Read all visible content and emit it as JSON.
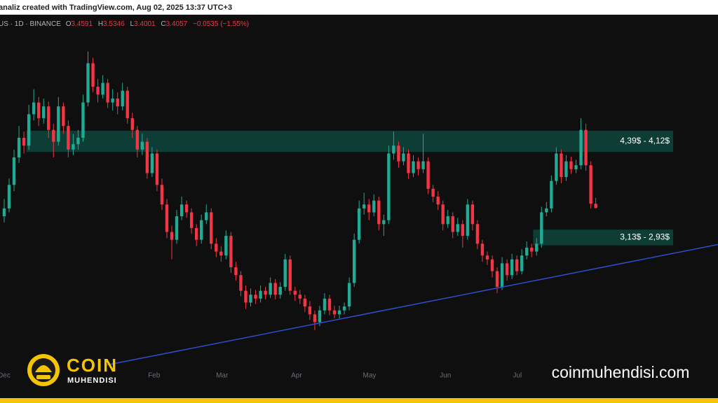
{
  "header": {
    "caption": "analiz created with TradingView.com, Aug 02, 2025 13:37 UTC+3",
    "symbol": "US · 1D · BINANCE",
    "ohlc_labels": [
      "O",
      "H",
      "L",
      "C"
    ],
    "change": "−0.0535 (−1.55%)"
  },
  "brand": {
    "name": "COIN",
    "sub": "MUHENDISI",
    "site": "coinmuhendisi.com"
  },
  "chart_data": {
    "type": "candlestick",
    "up_color": "#22ab94",
    "down_color": "#f23645",
    "ylim": [
      0.92,
      5.86
    ],
    "xlim": [
      -0.85,
      144.8
    ],
    "xticks": [
      {
        "value": 0,
        "label": "Dec"
      },
      {
        "value": 30.4,
        "label": "Feb"
      },
      {
        "value": 44.2,
        "label": "Mar"
      },
      {
        "value": 59.3,
        "label": "Apr"
      },
      {
        "value": 74.1,
        "label": "May"
      },
      {
        "value": 89.5,
        "label": "Jun"
      },
      {
        "value": 104.1,
        "label": "Jul"
      }
    ],
    "zones": [
      {
        "label": "4,39$ - 4,12$",
        "top": 4.39,
        "bottom": 4.12,
        "start": 4.5,
        "end": 135.7,
        "color": "#0e3d35"
      },
      {
        "label": "3,13$ - 2,93$",
        "top": 3.13,
        "bottom": 2.93,
        "start": 107.3,
        "end": 135.7,
        "color": "#0e3d35"
      }
    ],
    "trendline": {
      "x": [
        20.5,
        144.8
      ],
      "y": [
        1.4,
        2.94
      ],
      "color": "#2f4fd0"
    },
    "candles": [
      [
        3.3,
        3.52,
        3.22,
        3.4
      ],
      [
        3.4,
        3.78,
        3.35,
        3.7
      ],
      [
        3.7,
        4.15,
        3.62,
        4.05
      ],
      [
        4.05,
        4.45,
        3.98,
        4.3
      ],
      [
        4.3,
        4.38,
        4.1,
        4.2
      ],
      [
        4.2,
        4.72,
        4.15,
        4.6
      ],
      [
        4.6,
        4.92,
        4.52,
        4.75
      ],
      [
        4.75,
        4.82,
        4.45,
        4.55
      ],
      [
        4.55,
        4.8,
        4.48,
        4.7
      ],
      [
        4.7,
        4.76,
        4.3,
        4.4
      ],
      [
        4.4,
        4.48,
        4.05,
        4.25
      ],
      [
        4.25,
        4.82,
        4.2,
        4.7
      ],
      [
        4.7,
        4.75,
        4.35,
        4.45
      ],
      [
        4.45,
        4.52,
        4.05,
        4.15
      ],
      [
        4.15,
        4.35,
        4.08,
        4.22
      ],
      [
        4.22,
        4.4,
        4.15,
        4.3
      ],
      [
        4.3,
        4.85,
        4.25,
        4.75
      ],
      [
        4.75,
        5.4,
        4.7,
        5.25
      ],
      [
        5.25,
        5.32,
        4.88,
        4.95
      ],
      [
        4.95,
        5.05,
        4.75,
        4.85
      ],
      [
        4.85,
        5.1,
        4.8,
        5.0
      ],
      [
        5.0,
        5.05,
        4.68,
        4.75
      ],
      [
        4.75,
        4.92,
        4.65,
        4.8
      ],
      [
        4.8,
        4.88,
        4.6,
        4.7
      ],
      [
        4.7,
        5.0,
        4.65,
        4.9
      ],
      [
        4.9,
        4.95,
        4.48,
        4.55
      ],
      [
        4.55,
        4.62,
        4.3,
        4.4
      ],
      [
        4.4,
        4.45,
        4.05,
        4.15
      ],
      [
        4.15,
        4.35,
        4.08,
        4.25
      ],
      [
        4.25,
        4.3,
        3.78,
        3.85
      ],
      [
        3.85,
        4.18,
        3.8,
        4.1
      ],
      [
        4.1,
        4.15,
        3.62,
        3.7
      ],
      [
        3.7,
        3.78,
        3.38,
        3.45
      ],
      [
        3.45,
        3.52,
        3.02,
        3.1
      ],
      [
        3.1,
        3.18,
        2.75,
        3.0
      ],
      [
        3.0,
        3.38,
        2.95,
        3.3
      ],
      [
        3.3,
        3.55,
        3.25,
        3.45
      ],
      [
        3.45,
        3.5,
        3.28,
        3.35
      ],
      [
        3.35,
        3.4,
        3.08,
        3.15
      ],
      [
        3.15,
        3.2,
        2.92,
        3.0
      ],
      [
        3.0,
        3.32,
        2.95,
        3.25
      ],
      [
        3.25,
        3.45,
        3.2,
        3.35
      ],
      [
        3.35,
        3.4,
        2.88,
        2.95
      ],
      [
        2.95,
        3.02,
        2.78,
        2.85
      ],
      [
        2.85,
        2.92,
        2.72,
        2.8
      ],
      [
        2.8,
        3.12,
        2.75,
        3.05
      ],
      [
        3.05,
        3.1,
        2.58,
        2.65
      ],
      [
        2.65,
        2.72,
        2.48,
        2.55
      ],
      [
        2.55,
        2.6,
        2.28,
        2.35
      ],
      [
        2.35,
        2.42,
        2.12,
        2.2
      ],
      [
        2.2,
        2.38,
        2.15,
        2.3
      ],
      [
        2.3,
        2.36,
        2.18,
        2.25
      ],
      [
        2.25,
        2.42,
        2.2,
        2.35
      ],
      [
        2.35,
        2.4,
        2.24,
        2.3
      ],
      [
        2.3,
        2.52,
        2.26,
        2.45
      ],
      [
        2.45,
        2.5,
        2.24,
        2.3
      ],
      [
        2.3,
        2.46,
        2.25,
        2.4
      ],
      [
        2.4,
        2.82,
        2.35,
        2.75
      ],
      [
        2.75,
        2.8,
        2.3,
        2.35
      ],
      [
        2.35,
        2.4,
        2.22,
        2.3
      ],
      [
        2.3,
        2.36,
        2.18,
        2.25
      ],
      [
        2.25,
        2.3,
        2.08,
        2.15
      ],
      [
        2.15,
        2.22,
        1.98,
        2.05
      ],
      [
        2.05,
        2.1,
        1.85,
        1.95
      ],
      [
        1.95,
        2.16,
        1.9,
        2.1
      ],
      [
        2.1,
        2.32,
        2.05,
        2.25
      ],
      [
        2.25,
        2.3,
        2.04,
        2.1
      ],
      [
        2.1,
        2.16,
        2.0,
        2.05
      ],
      [
        2.05,
        2.16,
        2.0,
        2.1
      ],
      [
        2.1,
        2.2,
        2.05,
        2.15
      ],
      [
        2.15,
        2.52,
        2.1,
        2.45
      ],
      [
        2.45,
        3.08,
        2.4,
        3.0
      ],
      [
        3.0,
        3.5,
        2.95,
        3.4
      ],
      [
        3.4,
        3.6,
        3.32,
        3.45
      ],
      [
        3.45,
        3.52,
        3.25,
        3.35
      ],
      [
        3.35,
        3.58,
        3.3,
        3.5
      ],
      [
        3.5,
        3.55,
        3.12,
        3.2
      ],
      [
        3.2,
        3.32,
        3.05,
        3.25
      ],
      [
        3.25,
        4.2,
        3.2,
        4.1
      ],
      [
        4.1,
        4.38,
        4.02,
        4.2
      ],
      [
        4.2,
        4.25,
        3.92,
        4.0
      ],
      [
        4.0,
        4.18,
        3.95,
        4.1
      ],
      [
        4.1,
        4.15,
        3.78,
        3.85
      ],
      [
        3.85,
        4.08,
        3.8,
        4.0
      ],
      [
        4.0,
        4.05,
        3.82,
        3.9
      ],
      [
        3.9,
        4.35,
        3.85,
        4.0
      ],
      [
        4.0,
        4.05,
        3.58,
        3.65
      ],
      [
        3.65,
        3.7,
        3.48,
        3.55
      ],
      [
        3.55,
        3.62,
        3.38,
        3.45
      ],
      [
        3.45,
        3.5,
        3.12,
        3.2
      ],
      [
        3.2,
        3.38,
        3.15,
        3.3
      ],
      [
        3.3,
        3.35,
        3.02,
        3.1
      ],
      [
        3.1,
        3.28,
        3.05,
        3.2
      ],
      [
        3.2,
        3.25,
        2.9,
        3.05
      ],
      [
        3.05,
        3.52,
        3.0,
        3.45
      ],
      [
        3.45,
        3.5,
        3.12,
        3.2
      ],
      [
        3.2,
        3.25,
        2.88,
        2.95
      ],
      [
        2.95,
        3.0,
        2.72,
        2.8
      ],
      [
        2.8,
        2.85,
        2.68,
        2.75
      ],
      [
        2.75,
        2.8,
        2.52,
        2.6
      ],
      [
        2.6,
        2.65,
        2.32,
        2.4
      ],
      [
        2.4,
        2.78,
        2.36,
        2.7
      ],
      [
        2.7,
        2.75,
        2.48,
        2.55
      ],
      [
        2.55,
        2.82,
        2.5,
        2.75
      ],
      [
        2.75,
        2.8,
        2.55,
        2.6
      ],
      [
        2.6,
        2.88,
        2.56,
        2.8
      ],
      [
        2.8,
        2.98,
        2.75,
        2.9
      ],
      [
        2.9,
        2.95,
        2.78,
        2.85
      ],
      [
        2.85,
        3.02,
        2.8,
        2.95
      ],
      [
        2.95,
        3.42,
        2.9,
        3.35
      ],
      [
        3.35,
        3.48,
        3.3,
        3.4
      ],
      [
        3.4,
        3.82,
        3.35,
        3.75
      ],
      [
        3.75,
        4.18,
        3.7,
        4.1
      ],
      [
        4.1,
        4.15,
        3.72,
        3.8
      ],
      [
        3.8,
        4.08,
        3.75,
        4.0
      ],
      [
        4.0,
        4.06,
        3.84,
        3.9
      ],
      [
        3.9,
        4.02,
        3.85,
        3.95
      ],
      [
        3.95,
        4.55,
        3.9,
        4.4
      ],
      [
        4.4,
        4.48,
        3.88,
        3.95
      ],
      [
        3.95,
        4.0,
        3.4,
        3.46
      ],
      [
        3.4591,
        3.5346,
        3.4001,
        3.4057
      ]
    ]
  }
}
